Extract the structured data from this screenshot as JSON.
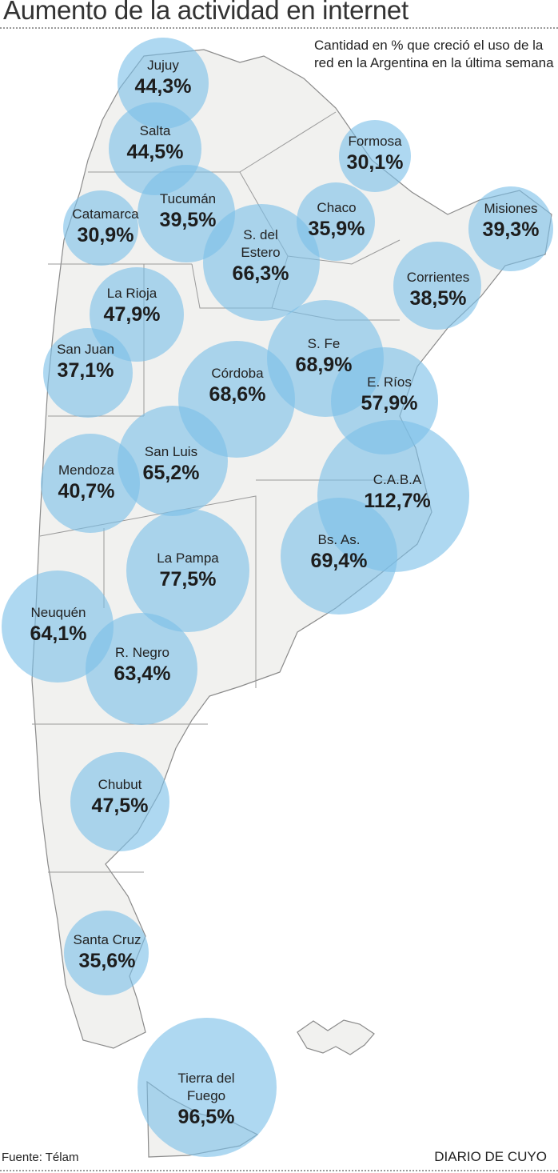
{
  "title": "Aumento de la actividad en internet",
  "subtitle": "Cantidad en % que creció el uso de la red en la Argentina en la última semana",
  "source": "Fuente: Télam",
  "brand": "DIARIO DE CUYO",
  "colors": {
    "bubble": "#8fc8ea",
    "land": "#f1f1ef",
    "border": "#8a8a8a"
  },
  "provinces": [
    {
      "name": "Jujuy",
      "value": "44,3%"
    },
    {
      "name": "Salta",
      "value": "44,5%"
    },
    {
      "name": "Formosa",
      "value": "30,1%"
    },
    {
      "name": "Tucumán",
      "value": "39,5%"
    },
    {
      "name": "Catamarca",
      "value": "30,9%"
    },
    {
      "name": "Chaco",
      "value": "35,9%"
    },
    {
      "name": "Misiones",
      "value": "39,3%"
    },
    {
      "name": "S. del\nEstero",
      "value": "66,3%"
    },
    {
      "name": "Corrientes",
      "value": "38,5%"
    },
    {
      "name": "La Rioja",
      "value": "47,9%"
    },
    {
      "name": "San Juan",
      "value": "37,1%"
    },
    {
      "name": "S. Fe",
      "value": "68,9%"
    },
    {
      "name": "Córdoba",
      "value": "68,6%"
    },
    {
      "name": "E. Ríos",
      "value": "57,9%"
    },
    {
      "name": "San Luis",
      "value": "65,2%"
    },
    {
      "name": "Mendoza",
      "value": "40,7%"
    },
    {
      "name": "C.A.B.A",
      "value": "112,7%"
    },
    {
      "name": "Bs. As.",
      "value": "69,4%"
    },
    {
      "name": "La Pampa",
      "value": "77,5%"
    },
    {
      "name": "Neuquén",
      "value": "64,1%"
    },
    {
      "name": "R. Negro",
      "value": "63,4%"
    },
    {
      "name": "Chubut",
      "value": "47,5%"
    },
    {
      "name": "Santa Cruz",
      "value": "35,6%"
    },
    {
      "name": "Tierra del\nFuego",
      "value": "96,5%"
    }
  ]
}
